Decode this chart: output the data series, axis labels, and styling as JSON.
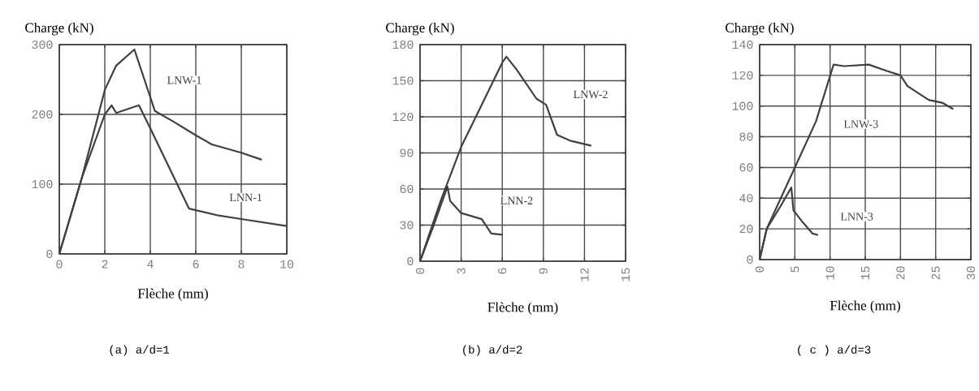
{
  "chart_data": [
    {
      "type": "line",
      "xlabel": "Flèche  (mm)",
      "ylabel": "Charge (kN)",
      "xlim": [
        0,
        10
      ],
      "ylim": [
        0,
        300
      ],
      "xticks": [
        0,
        2,
        4,
        6,
        8,
        10
      ],
      "yticks": [
        0,
        100,
        200,
        300
      ],
      "grid": true,
      "legend": false,
      "marker": "none",
      "line_style": "solid",
      "series": [
        {
          "name": "LNW-1",
          "color": "#404040",
          "x": [
            0,
            1,
            2,
            2.5,
            3.3,
            4.2,
            5,
            6,
            6.7,
            8,
            8.9
          ],
          "values": [
            0,
            110,
            235,
            270,
            293,
            205,
            190,
            170,
            157,
            145,
            135
          ]
        },
        {
          "name": "LNN-1",
          "color": "#404040",
          "x": [
            0,
            1,
            2,
            2.3,
            2.5,
            3.5,
            4,
            5.7,
            7,
            8,
            10
          ],
          "values": [
            0,
            110,
            200,
            213,
            202,
            213,
            180,
            65,
            55,
            50,
            40
          ]
        }
      ],
      "annotations": [
        "(a)  a/d=1"
      ]
    },
    {
      "type": "line",
      "xlabel": "Flèche  (mm)",
      "ylabel": "Charge (kN)",
      "xlim": [
        0,
        15
      ],
      "ylim": [
        0,
        180
      ],
      "xticks": [
        0,
        3,
        6,
        9,
        12,
        15
      ],
      "yticks": [
        0,
        30,
        60,
        90,
        120,
        150,
        180
      ],
      "grid": true,
      "legend": false,
      "marker": "none",
      "line_style": "solid",
      "series": [
        {
          "name": "LNW-2",
          "color": "#404040",
          "x": [
            0,
            1.5,
            3,
            4.5,
            6,
            6.3,
            7,
            8.5,
            9.2,
            10,
            11,
            12.5
          ],
          "values": [
            0,
            50,
            95,
            130,
            165,
            170,
            160,
            135,
            130,
            105,
            100,
            96
          ]
        },
        {
          "name": "LNN-2",
          "color": "#404040",
          "x": [
            0,
            1,
            2,
            2.2,
            3,
            4.5,
            5.2,
            6
          ],
          "values": [
            0,
            30,
            62,
            50,
            40,
            35,
            23,
            22
          ]
        }
      ],
      "annotations": [
        "(b)    a/d=2"
      ]
    },
    {
      "type": "line",
      "xlabel": "Flèche  (mm)",
      "ylabel": "Charge (kN)",
      "xlim": [
        0,
        30
      ],
      "ylim": [
        0,
        140
      ],
      "xticks": [
        0,
        5,
        10,
        15,
        20,
        25,
        30
      ],
      "yticks": [
        0,
        20,
        40,
        60,
        80,
        100,
        120,
        140
      ],
      "grid": true,
      "legend": false,
      "marker": "none",
      "line_style": "solid",
      "series": [
        {
          "name": "LNW-3",
          "color": "#404040",
          "x": [
            0,
            1,
            5,
            8,
            10.5,
            12,
            15.5,
            18,
            20,
            21,
            24,
            26,
            27.5
          ],
          "values": [
            0,
            20,
            60,
            90,
            127,
            126,
            127,
            123,
            120,
            113,
            104,
            102,
            98
          ]
        },
        {
          "name": "LNN-3",
          "color": "#404040",
          "x": [
            0,
            1,
            3,
            4.5,
            4.8,
            6,
            7.5,
            8.3
          ],
          "values": [
            0,
            20,
            35,
            47,
            32,
            25,
            17,
            16
          ]
        }
      ],
      "annotations": [
        "( c )   a/d=3"
      ]
    }
  ]
}
